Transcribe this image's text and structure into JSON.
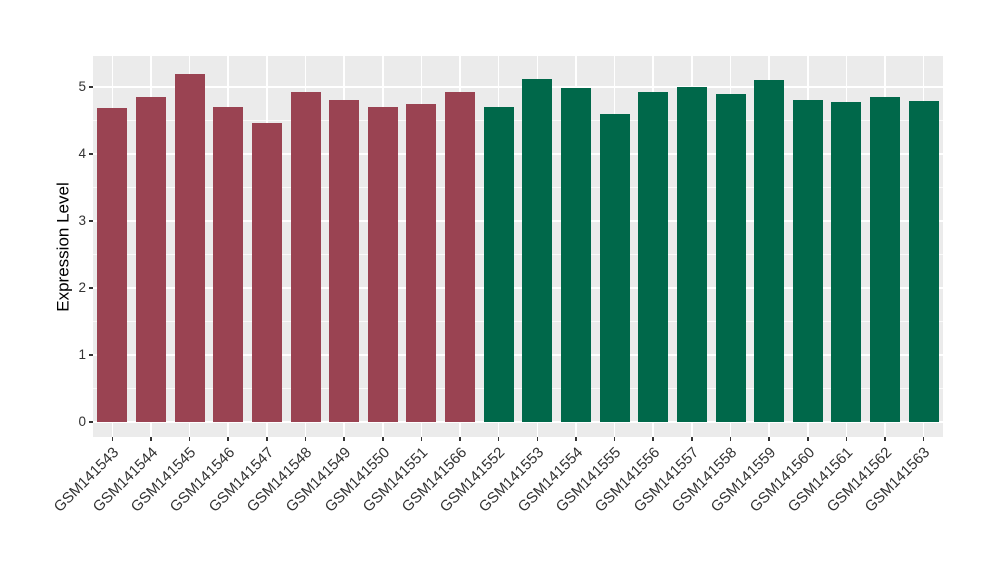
{
  "figure": {
    "background": "#ffffff",
    "panel_background": "#EBEBEB",
    "grid_color": "#FFFFFF",
    "tick_text_color": "#333333",
    "axis_title_color": "#000000"
  },
  "chart_data": {
    "type": "bar",
    "title": "",
    "xlabel": "",
    "ylabel": "Expression Level",
    "ylim": [
      0,
      5.46
    ],
    "yticks": [
      0,
      1,
      2,
      3,
      4,
      5
    ],
    "yticks_minor": [
      0.5,
      1.5,
      2.5,
      3.5,
      4.5
    ],
    "grid": true,
    "legend": false,
    "x_tick_angle": -45,
    "categories": [
      "GSM141543",
      "GSM141544",
      "GSM141545",
      "GSM141546",
      "GSM141547",
      "GSM141548",
      "GSM141549",
      "GSM141550",
      "GSM141551",
      "GSM141566",
      "GSM141552",
      "GSM141553",
      "GSM141554",
      "GSM141555",
      "GSM141556",
      "GSM141557",
      "GSM141558",
      "GSM141559",
      "GSM141560",
      "GSM141561",
      "GSM141562",
      "GSM141563"
    ],
    "values": [
      4.68,
      4.85,
      5.19,
      4.7,
      4.46,
      4.93,
      4.8,
      4.7,
      4.75,
      4.92,
      4.7,
      5.12,
      4.98,
      4.6,
      4.93,
      5.0,
      4.89,
      5.1,
      4.81,
      4.77,
      4.85,
      4.79
    ],
    "bar_groups": [
      "A",
      "A",
      "A",
      "A",
      "A",
      "A",
      "A",
      "A",
      "A",
      "A",
      "B",
      "B",
      "B",
      "B",
      "B",
      "B",
      "B",
      "B",
      "B",
      "B",
      "B",
      "B"
    ],
    "group_colors": {
      "A": "#9A4352",
      "B": "#00684A"
    }
  }
}
